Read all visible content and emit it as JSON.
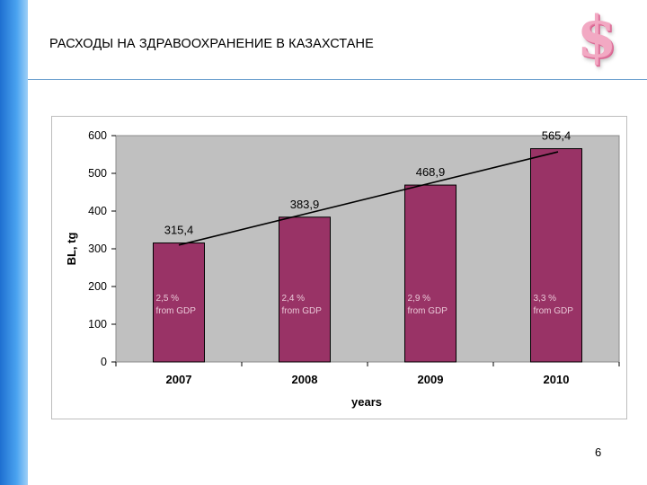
{
  "slide": {
    "title": "РАСХОДЫ НА ЗДРАВООХРАНЕНИЕ В КАЗАХСТАНЕ",
    "page_number": "6",
    "logo_icon": "dollar-sign-icon"
  },
  "colors": {
    "left_bar": "#2a7fdc",
    "title_rule": "#6fa2cf",
    "bar": "#993366",
    "plot_bg": "#c0c0c0",
    "trend_line": "#000000"
  },
  "chart_data": {
    "type": "bar",
    "categories": [
      "2007",
      "2008",
      "2009",
      "2010"
    ],
    "values": [
      315.4,
      383.9,
      468.9,
      565.4
    ],
    "value_labels": [
      "315,4",
      "383,9",
      "468,9",
      "565,4"
    ],
    "gdp_share_labels": [
      [
        "2,5 %",
        "from GDP"
      ],
      [
        "2,4 %",
        "from GDP"
      ],
      [
        "2,9 %",
        "from GDP"
      ],
      [
        "3,3 %",
        "from GDP"
      ]
    ],
    "xlabel": "years",
    "ylabel": "BL, tg",
    "ylim": [
      0,
      600
    ],
    "yticks": [
      0,
      100,
      200,
      300,
      400,
      500,
      600
    ],
    "grid": false,
    "legend": "none",
    "trend_line": {
      "from": {
        "x": "2007",
        "y": 310
      },
      "to": {
        "x": "2010",
        "y": 557
      }
    }
  }
}
